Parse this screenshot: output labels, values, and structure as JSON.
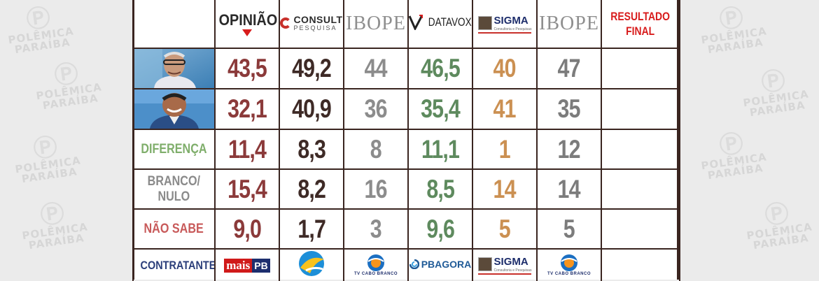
{
  "watermark": {
    "line1": "POLÊMICA",
    "line2": "PARAÍBA"
  },
  "pollsters": [
    {
      "name": "OPINIÃO",
      "color": "#8b3a3a",
      "icon": "opiniao-logo"
    },
    {
      "name": "CONSULT",
      "sub": "PESQUISA",
      "color": "#3e2a26",
      "icon": "consult-logo"
    },
    {
      "name": "IBOPE",
      "color": "#8c8c8c",
      "icon": "ibope-logo"
    },
    {
      "name": "DATAVOX",
      "color": "#5e8a5e",
      "icon": "datavox-logo"
    },
    {
      "name": "SIGMA",
      "sub": "Consultoria e Pesquisas",
      "color": "#cb9052",
      "icon": "sigma-logo"
    },
    {
      "name": "IBOPE",
      "color": "#7c7c7c",
      "icon": "ibope-logo"
    }
  ],
  "final_header": {
    "line1": "RESULTADO",
    "line2": "FINAL",
    "color": "#d81c1c"
  },
  "rows": [
    {
      "label": "",
      "photo": "candidate-1-photo",
      "values": [
        "43,5",
        "49,2",
        "44",
        "46,5",
        "40",
        "47"
      ],
      "final": ""
    },
    {
      "label": "",
      "photo": "candidate-2-photo",
      "values": [
        "32,1",
        "40,9",
        "36",
        "35,4",
        "41",
        "35"
      ],
      "final": ""
    },
    {
      "label": "DIFERENÇA",
      "label_color": "#7fae6b",
      "values": [
        "11,4",
        "8,3",
        "8",
        "11,1",
        "1",
        "12"
      ],
      "final": ""
    },
    {
      "label_l1": "BRANCO/",
      "label_l2": "NULO",
      "label_color": "#8a8a8a",
      "values": [
        "15,4",
        "8,2",
        "16",
        "8,5",
        "14",
        "14"
      ],
      "final": ""
    },
    {
      "label": "NÃO SABE",
      "label_color": "#c85a5a",
      "values": [
        "9,0",
        "1,7",
        "3",
        "9,6",
        "5",
        "5"
      ],
      "final": ""
    }
  ],
  "contratante": {
    "label": "CONTRATANTE",
    "label_color": "#2b3e7a",
    "logos": [
      {
        "a": "mais",
        "b": "PB",
        "icon": "maispb-logo"
      },
      {
        "icon": "tv-arapuan-logo"
      },
      {
        "text": "TV CABO BRANCO",
        "icon": "tv-cabo-branco-logo"
      },
      {
        "text": "PBAGORA",
        "icon": "pbagora-logo"
      },
      {
        "text": "SIGMA",
        "sub": "Consultoria e Pesquisas",
        "icon": "sigma-logo"
      },
      {
        "text": "TV CABO BRANCO",
        "icon": "tv-cabo-branco-logo"
      }
    ]
  }
}
